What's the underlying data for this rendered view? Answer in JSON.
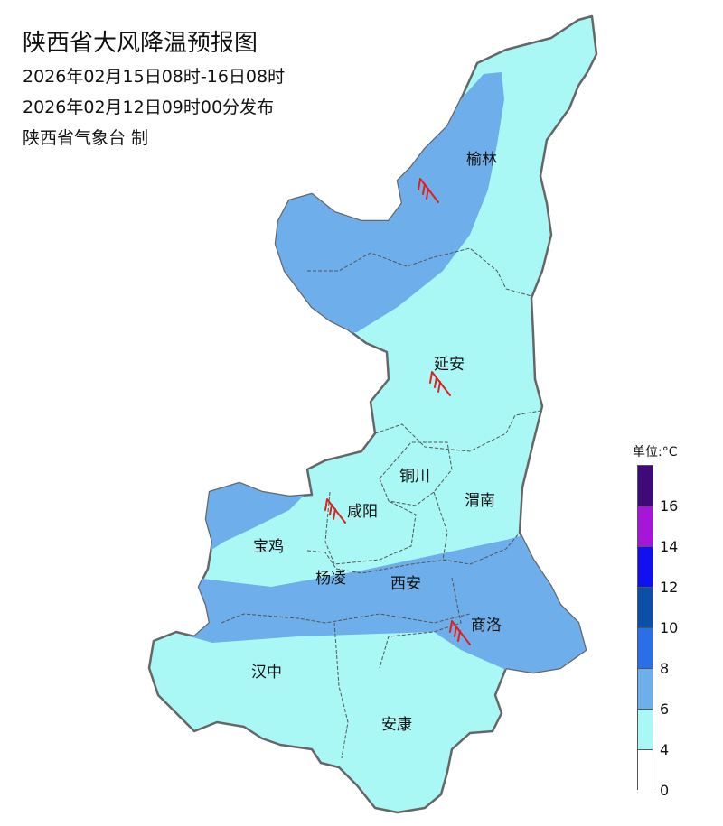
{
  "header": {
    "title": "陕西省大风降温预报图",
    "period": "2026年02月15日08时-16日08时",
    "issued": "2026年02月12日09时00分发布",
    "producer": "陕西省气象台 制"
  },
  "map": {
    "colors": {
      "zone_4_6": "#aaf8f6",
      "zone_6_8": "#6eaeea",
      "boundary": "#666666",
      "wind_barb": "#e0201a"
    },
    "cities": [
      {
        "name": "榆林"
      },
      {
        "name": "延安"
      },
      {
        "name": "铜川"
      },
      {
        "name": "渭南"
      },
      {
        "name": "咸阳"
      },
      {
        "name": "宝鸡"
      },
      {
        "name": "杨凌"
      },
      {
        "name": "西安"
      },
      {
        "name": "商洛"
      },
      {
        "name": "汉中"
      },
      {
        "name": "安康"
      }
    ],
    "wind_barbs": [
      {
        "location": "榆林"
      },
      {
        "location": "延安"
      },
      {
        "location": "咸阳"
      },
      {
        "location": "商洛"
      }
    ]
  },
  "legend": {
    "unit": "单位:°C",
    "labels": [
      "16",
      "14",
      "12",
      "10",
      "8",
      "6",
      "4",
      "0"
    ],
    "colors": [
      "#3f0a77",
      "#a516d9",
      "#1010f0",
      "#0d4fa8",
      "#2a6ee8",
      "#6eaeea",
      "#aaf8f6",
      "#ffffff"
    ]
  }
}
